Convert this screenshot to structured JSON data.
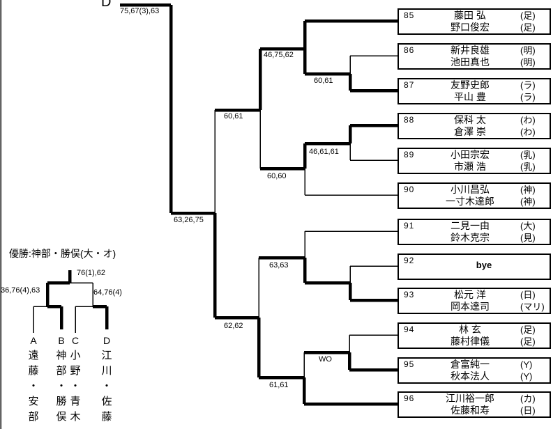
{
  "page": {
    "section_label": "D",
    "section_score": "75,67(3),63",
    "champion_note": "優勝:神部・勝俣(大・オ)"
  },
  "mini_bracket": {
    "final_score": "76(1),62",
    "sf_left_score": "36,76(4),63",
    "sf_right_score": "64,76(4)",
    "finalists": [
      {
        "seed": "A",
        "name": "遠藤・安部"
      },
      {
        "seed": "B",
        "name": "神部・勝俣"
      },
      {
        "seed": "C",
        "name": "小野・青木"
      },
      {
        "seed": "D",
        "name": "江川・佐藤"
      }
    ]
  },
  "entries": [
    {
      "num": "85",
      "p1": "藤田 弘",
      "a1": "(足)",
      "p2": "野口俊宏",
      "a2": "(足)"
    },
    {
      "num": "86",
      "p1": "新井良雄",
      "a1": "(明)",
      "p2": "池田真也",
      "a2": "(明)"
    },
    {
      "num": "87",
      "p1": "友野史郎",
      "a1": "(ラ)",
      "p2": "平山 豊",
      "a2": "(ラ)"
    },
    {
      "num": "88",
      "p1": "保科 太",
      "a1": "(わ)",
      "p2": "倉澤 崇",
      "a2": "(わ)"
    },
    {
      "num": "89",
      "p1": "小田宗宏",
      "a1": "(乳)",
      "p2": "市瀬 浩",
      "a2": "(乳)"
    },
    {
      "num": "90",
      "p1": "小川昌弘",
      "a1": "(神)",
      "p2": "一寸木達郎",
      "a2": "(神)"
    },
    {
      "num": "91",
      "p1": "二見一由",
      "a1": "(大)",
      "p2": "鈴木克宗",
      "a2": "(見)"
    },
    {
      "num": "92",
      "bye": true,
      "bye_label": "bye"
    },
    {
      "num": "93",
      "p1": "松元 洋",
      "a1": "(日)",
      "p2": "岡本達司",
      "a2": "(マリ)"
    },
    {
      "num": "94",
      "p1": "林 玄",
      "a1": "(足)",
      "p2": "藤村律儀",
      "a2": "(足)"
    },
    {
      "num": "95",
      "p1": "倉富純一",
      "a1": "(Y)",
      "p2": "秋本法人",
      "a2": "(Y)"
    },
    {
      "num": "96",
      "p1": "江川裕一郎",
      "a1": "(カ)",
      "p2": "佐藤和寿",
      "a2": "(日)"
    }
  ],
  "match_scores": [
    {
      "id": "r2a",
      "text": "46,75,62"
    },
    {
      "id": "r1a",
      "text": "60,61"
    },
    {
      "id": "r3a",
      "text": "60,61"
    },
    {
      "id": "r1b",
      "text": "46,61,61"
    },
    {
      "id": "r2b",
      "text": "60,60"
    },
    {
      "id": "final",
      "text": "63,26,75"
    },
    {
      "id": "r2c",
      "text": "63,63"
    },
    {
      "id": "r1c",
      "text": "WO"
    },
    {
      "id": "r2d",
      "text": "61,61"
    },
    {
      "id": "r3b",
      "text": "62,62"
    }
  ]
}
